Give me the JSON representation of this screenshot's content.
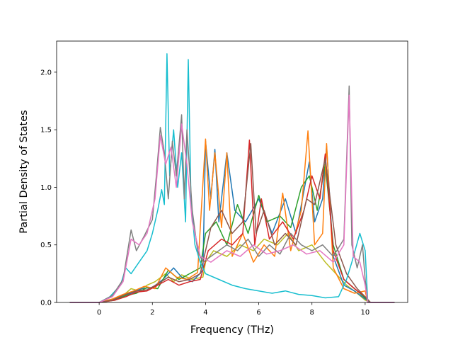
{
  "chart_data": {
    "type": "line",
    "title": "",
    "xlabel": "Frequency (THz)",
    "ylabel": "Partial Density of States",
    "xlim": [
      -1.6,
      11.6
    ],
    "ylim": [
      0.0,
      2.27
    ],
    "x_ticks": [
      0,
      2,
      4,
      6,
      8,
      10
    ],
    "x_tick_labels": [
      "0",
      "2",
      "4",
      "6",
      "8",
      "10"
    ],
    "y_ticks": [
      0.0,
      0.5,
      1.0,
      1.5,
      2.0
    ],
    "y_tick_labels": [
      "0.0",
      "0.5",
      "1.0",
      "1.5",
      "2.0"
    ],
    "grid": false,
    "legend": "none",
    "series": [
      {
        "color": "#bcbd22",
        "points": [
          [
            -1.1,
            0
          ],
          [
            0,
            0
          ],
          [
            0.5,
            0.03
          ],
          [
            0.9,
            0.06
          ],
          [
            1.2,
            0.12
          ],
          [
            1.5,
            0.1
          ],
          [
            1.8,
            0.15
          ],
          [
            2.1,
            0.18
          ],
          [
            2.5,
            0.25
          ],
          [
            2.8,
            0.18
          ],
          [
            3.1,
            0.24
          ],
          [
            3.5,
            0.2
          ],
          [
            3.9,
            0.22
          ],
          [
            4.0,
            0.35
          ],
          [
            4.3,
            0.45
          ],
          [
            4.8,
            0.4
          ],
          [
            5.3,
            0.5
          ],
          [
            5.8,
            0.45
          ],
          [
            6.2,
            0.55
          ],
          [
            6.7,
            0.5
          ],
          [
            7.1,
            0.6
          ],
          [
            7.5,
            0.45
          ],
          [
            8.0,
            0.5
          ],
          [
            8.5,
            0.35
          ],
          [
            8.9,
            0.25
          ],
          [
            9.3,
            0.15
          ],
          [
            9.7,
            0.08
          ],
          [
            10.0,
            0.02
          ],
          [
            10.2,
            0
          ],
          [
            11.1,
            0
          ]
        ]
      },
      {
        "color": "#1f77b4",
        "points": [
          [
            -1.1,
            0
          ],
          [
            0,
            0
          ],
          [
            0.5,
            0.02
          ],
          [
            0.9,
            0.05
          ],
          [
            1.2,
            0.08
          ],
          [
            1.6,
            0.12
          ],
          [
            2.0,
            0.13
          ],
          [
            2.4,
            0.2
          ],
          [
            2.8,
            0.3
          ],
          [
            3.1,
            0.22
          ],
          [
            3.5,
            0.18
          ],
          [
            3.9,
            0.28
          ],
          [
            4.0,
            1.4
          ],
          [
            4.2,
            0.9
          ],
          [
            4.35,
            1.33
          ],
          [
            4.5,
            0.7
          ],
          [
            4.8,
            1.3
          ],
          [
            5.1,
            0.8
          ],
          [
            5.5,
            0.7
          ],
          [
            6.0,
            0.9
          ],
          [
            6.5,
            0.6
          ],
          [
            7.0,
            0.9
          ],
          [
            7.4,
            0.6
          ],
          [
            7.9,
            1.22
          ],
          [
            8.1,
            0.7
          ],
          [
            8.4,
            0.9
          ],
          [
            8.55,
            1.36
          ],
          [
            8.8,
            0.4
          ],
          [
            9.2,
            0.15
          ],
          [
            9.6,
            0.1
          ],
          [
            10.0,
            0.03
          ],
          [
            10.2,
            0
          ],
          [
            11.1,
            0
          ]
        ]
      },
      {
        "color": "#2ca02c",
        "points": [
          [
            -1.1,
            0
          ],
          [
            0,
            0
          ],
          [
            0.6,
            0.02
          ],
          [
            1.0,
            0.06
          ],
          [
            1.4,
            0.08
          ],
          [
            1.8,
            0.13
          ],
          [
            2.2,
            0.12
          ],
          [
            2.6,
            0.28
          ],
          [
            3.0,
            0.2
          ],
          [
            3.4,
            0.25
          ],
          [
            3.8,
            0.3
          ],
          [
            4.0,
            0.6
          ],
          [
            4.4,
            0.7
          ],
          [
            4.8,
            0.5
          ],
          [
            5.2,
            0.85
          ],
          [
            5.6,
            0.6
          ],
          [
            6.0,
            0.93
          ],
          [
            6.3,
            0.7
          ],
          [
            6.8,
            0.75
          ],
          [
            7.2,
            0.65
          ],
          [
            7.6,
            1.0
          ],
          [
            7.9,
            1.1
          ],
          [
            8.2,
            0.8
          ],
          [
            8.5,
            1.2
          ],
          [
            8.8,
            0.5
          ],
          [
            9.2,
            0.2
          ],
          [
            9.7,
            0.1
          ],
          [
            10.0,
            0.04
          ],
          [
            10.2,
            0
          ],
          [
            11.1,
            0
          ]
        ]
      },
      {
        "color": "#ff7f0e",
        "points": [
          [
            -1.1,
            0
          ],
          [
            0,
            0
          ],
          [
            0.5,
            0.03
          ],
          [
            0.9,
            0.07
          ],
          [
            1.3,
            0.1
          ],
          [
            1.7,
            0.14
          ],
          [
            2.1,
            0.12
          ],
          [
            2.5,
            0.3
          ],
          [
            2.9,
            0.22
          ],
          [
            3.3,
            0.2
          ],
          [
            3.7,
            0.26
          ],
          [
            4.0,
            1.42
          ],
          [
            4.15,
            0.8
          ],
          [
            4.35,
            1.3
          ],
          [
            4.6,
            0.65
          ],
          [
            4.8,
            1.3
          ],
          [
            5.0,
            0.4
          ],
          [
            5.4,
            0.6
          ],
          [
            5.8,
            0.35
          ],
          [
            6.2,
            0.5
          ],
          [
            6.6,
            0.4
          ],
          [
            6.9,
            0.95
          ],
          [
            7.2,
            0.45
          ],
          [
            7.6,
            0.8
          ],
          [
            7.85,
            1.49
          ],
          [
            8.1,
            0.5
          ],
          [
            8.4,
            0.6
          ],
          [
            8.55,
            1.38
          ],
          [
            8.8,
            0.3
          ],
          [
            9.2,
            0.12
          ],
          [
            9.6,
            0.08
          ],
          [
            10.0,
            0.1
          ],
          [
            10.1,
            0
          ],
          [
            11.1,
            0
          ]
        ]
      },
      {
        "color": "#d62728",
        "points": [
          [
            -1.1,
            0
          ],
          [
            0,
            0
          ],
          [
            0.6,
            0.02
          ],
          [
            1.0,
            0.05
          ],
          [
            1.4,
            0.09
          ],
          [
            1.8,
            0.1
          ],
          [
            2.2,
            0.15
          ],
          [
            2.6,
            0.2
          ],
          [
            3.0,
            0.15
          ],
          [
            3.4,
            0.18
          ],
          [
            3.8,
            0.2
          ],
          [
            4.1,
            0.45
          ],
          [
            4.6,
            0.55
          ],
          [
            5.0,
            0.5
          ],
          [
            5.4,
            0.6
          ],
          [
            5.65,
            1.41
          ],
          [
            5.85,
            0.5
          ],
          [
            6.1,
            0.9
          ],
          [
            6.4,
            0.55
          ],
          [
            6.9,
            0.7
          ],
          [
            7.3,
            0.55
          ],
          [
            7.7,
            0.8
          ],
          [
            8.0,
            1.1
          ],
          [
            8.3,
            0.9
          ],
          [
            8.5,
            1.29
          ],
          [
            8.8,
            0.45
          ],
          [
            9.2,
            0.2
          ],
          [
            9.6,
            0.12
          ],
          [
            10.0,
            0.05
          ],
          [
            10.2,
            0
          ],
          [
            11.1,
            0
          ]
        ]
      },
      {
        "color": "#8c564b",
        "points": [
          [
            -1.1,
            0
          ],
          [
            0,
            0
          ],
          [
            0.5,
            0.02
          ],
          [
            1.0,
            0.07
          ],
          [
            1.4,
            0.1
          ],
          [
            1.8,
            0.11
          ],
          [
            2.2,
            0.16
          ],
          [
            2.6,
            0.22
          ],
          [
            3.0,
            0.18
          ],
          [
            3.4,
            0.2
          ],
          [
            3.8,
            0.25
          ],
          [
            4.2,
            0.65
          ],
          [
            4.6,
            0.8
          ],
          [
            5.0,
            0.6
          ],
          [
            5.4,
            0.7
          ],
          [
            5.7,
            1.38
          ],
          [
            5.9,
            0.6
          ],
          [
            6.2,
            0.8
          ],
          [
            6.6,
            0.5
          ],
          [
            7.0,
            0.6
          ],
          [
            7.4,
            0.5
          ],
          [
            7.8,
            0.9
          ],
          [
            8.1,
            0.85
          ],
          [
            8.5,
            1.25
          ],
          [
            8.9,
            0.5
          ],
          [
            9.3,
            0.25
          ],
          [
            9.7,
            0.12
          ],
          [
            10.0,
            0.05
          ],
          [
            10.2,
            0
          ],
          [
            11.1,
            0
          ]
        ]
      },
      {
        "color": "#17becf",
        "points": [
          [
            -1.1,
            0
          ],
          [
            0,
            0
          ],
          [
            0.4,
            0.05
          ],
          [
            0.8,
            0.15
          ],
          [
            1.0,
            0.3
          ],
          [
            1.2,
            0.25
          ],
          [
            1.5,
            0.35
          ],
          [
            1.8,
            0.45
          ],
          [
            2.0,
            0.6
          ],
          [
            2.2,
            0.8
          ],
          [
            2.35,
            0.98
          ],
          [
            2.45,
            0.85
          ],
          [
            2.55,
            2.16
          ],
          [
            2.65,
            1.1
          ],
          [
            2.8,
            1.5
          ],
          [
            2.95,
            1.0
          ],
          [
            3.1,
            1.3
          ],
          [
            3.25,
            0.7
          ],
          [
            3.35,
            2.11
          ],
          [
            3.45,
            0.9
          ],
          [
            3.6,
            0.5
          ],
          [
            3.8,
            0.35
          ],
          [
            4.0,
            0.25
          ],
          [
            4.5,
            0.2
          ],
          [
            5.0,
            0.15
          ],
          [
            5.5,
            0.12
          ],
          [
            6.0,
            0.1
          ],
          [
            6.5,
            0.08
          ],
          [
            7.0,
            0.1
          ],
          [
            7.5,
            0.07
          ],
          [
            8.0,
            0.06
          ],
          [
            8.5,
            0.04
          ],
          [
            9.0,
            0.05
          ],
          [
            9.3,
            0.2
          ],
          [
            9.5,
            0.35
          ],
          [
            9.8,
            0.6
          ],
          [
            10.0,
            0.45
          ],
          [
            10.1,
            0
          ],
          [
            11.1,
            0
          ]
        ]
      },
      {
        "color": "#7f7f7f",
        "points": [
          [
            -1.1,
            0
          ],
          [
            0,
            0
          ],
          [
            0.5,
            0.06
          ],
          [
            0.9,
            0.2
          ],
          [
            1.2,
            0.63
          ],
          [
            1.4,
            0.45
          ],
          [
            1.7,
            0.58
          ],
          [
            2.0,
            0.72
          ],
          [
            2.15,
            1.1
          ],
          [
            2.3,
            1.52
          ],
          [
            2.45,
            1.3
          ],
          [
            2.6,
            0.9
          ],
          [
            2.75,
            1.4
          ],
          [
            2.9,
            1.1
          ],
          [
            3.1,
            1.63
          ],
          [
            3.2,
            0.9
          ],
          [
            3.3,
            1.5
          ],
          [
            3.5,
            0.8
          ],
          [
            3.7,
            0.45
          ],
          [
            3.9,
            0.35
          ],
          [
            4.2,
            0.4
          ],
          [
            4.8,
            0.5
          ],
          [
            5.2,
            0.45
          ],
          [
            5.6,
            0.55
          ],
          [
            6.0,
            0.4
          ],
          [
            6.4,
            0.5
          ],
          [
            6.8,
            0.42
          ],
          [
            7.2,
            0.6
          ],
          [
            7.6,
            0.5
          ],
          [
            8.0,
            0.45
          ],
          [
            8.4,
            0.5
          ],
          [
            8.8,
            0.4
          ],
          [
            9.2,
            0.55
          ],
          [
            9.4,
            1.88
          ],
          [
            9.5,
            0.5
          ],
          [
            9.7,
            0.3
          ],
          [
            9.9,
            0.5
          ],
          [
            10.0,
            0.2
          ],
          [
            10.1,
            0
          ],
          [
            11.1,
            0
          ]
        ]
      },
      {
        "color": "#e377c2",
        "points": [
          [
            -1.1,
            0
          ],
          [
            0,
            0
          ],
          [
            0.5,
            0.05
          ],
          [
            0.9,
            0.18
          ],
          [
            1.2,
            0.55
          ],
          [
            1.5,
            0.5
          ],
          [
            1.8,
            0.6
          ],
          [
            2.1,
            0.9
          ],
          [
            2.3,
            1.45
          ],
          [
            2.5,
            1.2
          ],
          [
            2.7,
            1.35
          ],
          [
            2.9,
            1.0
          ],
          [
            3.1,
            1.55
          ],
          [
            3.3,
            1.2
          ],
          [
            3.5,
            0.7
          ],
          [
            3.8,
            0.4
          ],
          [
            4.2,
            0.35
          ],
          [
            4.8,
            0.45
          ],
          [
            5.3,
            0.4
          ],
          [
            5.8,
            0.5
          ],
          [
            6.3,
            0.42
          ],
          [
            6.8,
            0.45
          ],
          [
            7.3,
            0.5
          ],
          [
            7.8,
            0.42
          ],
          [
            8.3,
            0.45
          ],
          [
            8.8,
            0.35
          ],
          [
            9.2,
            0.5
          ],
          [
            9.4,
            1.8
          ],
          [
            9.55,
            0.4
          ],
          [
            9.8,
            0.35
          ],
          [
            10.0,
            0.15
          ],
          [
            10.1,
            0
          ],
          [
            11.1,
            0
          ]
        ]
      }
    ]
  }
}
